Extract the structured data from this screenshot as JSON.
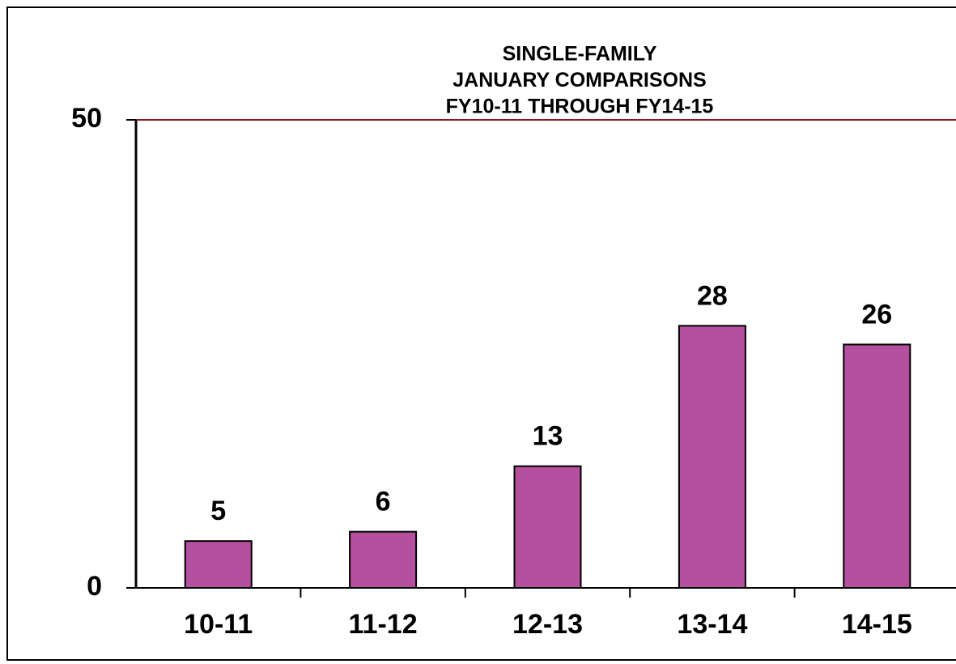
{
  "chart_data": {
    "type": "bar",
    "title": [
      "SINGLE-FAMILY",
      "JANUARY  COMPARISONS",
      "FY10-11  THROUGH  FY14-15"
    ],
    "categories": [
      "10-11",
      "11-12",
      "12-13",
      "13-14",
      "14-15"
    ],
    "values": [
      5,
      6,
      13,
      28,
      26
    ],
    "color": "#b5509f",
    "ylim": [
      0,
      50
    ],
    "yticks": [
      0,
      50
    ],
    "grid": true,
    "grid_color": "#8b1a1a"
  }
}
